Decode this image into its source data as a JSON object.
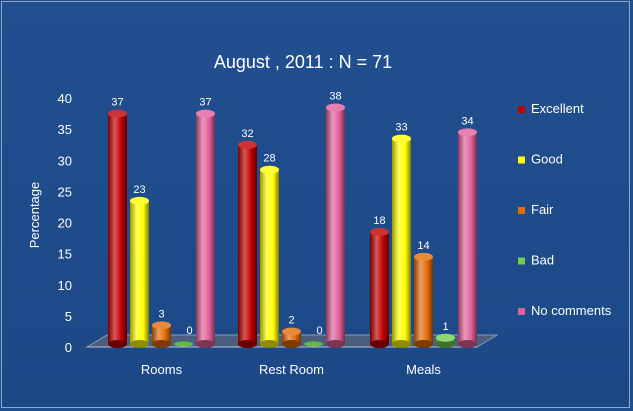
{
  "chart_data": {
    "type": "bar",
    "title": "August , 2011 : N = 71",
    "ylabel": "Percentage",
    "xlabel": "",
    "ylim": [
      0,
      40
    ],
    "yticks": [
      0,
      5,
      10,
      15,
      20,
      25,
      30,
      35,
      40
    ],
    "categories": [
      "Rooms",
      "Rest Room",
      "Meals"
    ],
    "series": [
      {
        "name": "Excellent",
        "values": [
          37,
          32,
          18
        ],
        "color": "#c00000"
      },
      {
        "name": "Good",
        "values": [
          23,
          28,
          33
        ],
        "color": "#ffff00"
      },
      {
        "name": "Fair",
        "values": [
          3,
          2,
          14
        ],
        "color": "#e36c09"
      },
      {
        "name": "Bad",
        "values": [
          0,
          0,
          1
        ],
        "color": "#6fcf50"
      },
      {
        "name": "No comments",
        "values": [
          37,
          38,
          34
        ],
        "color": "#e0609a"
      }
    ],
    "legend": "right",
    "grid": false,
    "bar_style": "3d-cylinder"
  }
}
